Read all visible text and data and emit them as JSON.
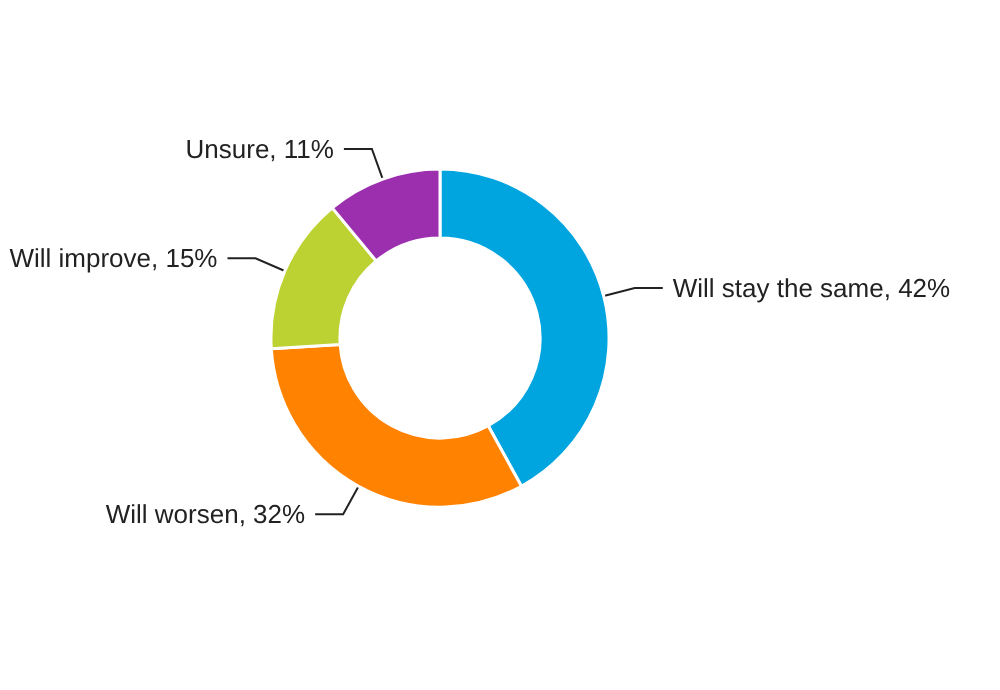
{
  "chart_data": {
    "type": "donut",
    "categories": [
      "Will stay the same",
      "Will worsen",
      "Will improve",
      "Unsure"
    ],
    "values": [
      42,
      32,
      15,
      11
    ],
    "value_labels": [
      "42%",
      "32%",
      "15%",
      "11%"
    ],
    "colors": [
      "#00a5e0",
      "#ff8200",
      "#bcd232",
      "#9b2fae"
    ],
    "legend": false
  }
}
